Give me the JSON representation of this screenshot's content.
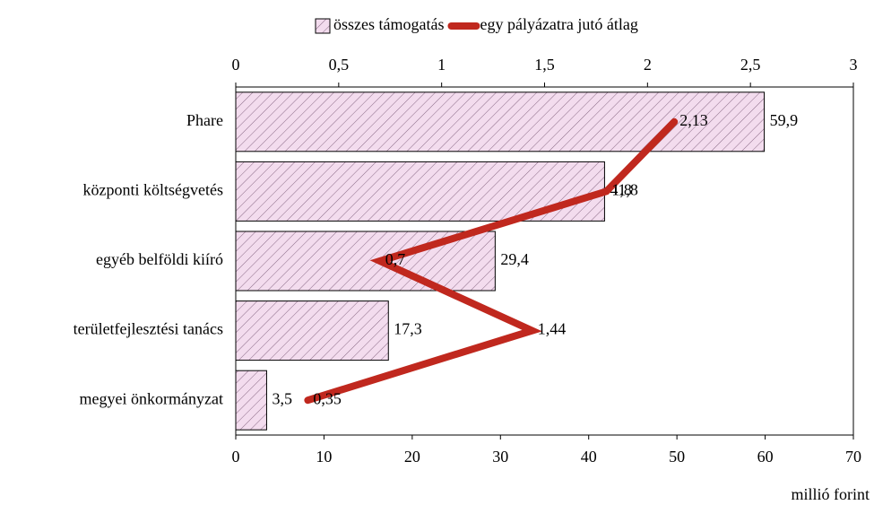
{
  "chart_data": {
    "type": "bar",
    "orientation": "horizontal",
    "categories": [
      "Phare",
      "központi költségvetés",
      "egyéb belföldi kiíró",
      "területfejlesztési tanács",
      "megyei önkormányzat"
    ],
    "series": [
      {
        "name": "összes támogatás",
        "type": "bar",
        "color": "#e9c0e0",
        "values": [
          59.9,
          41.8,
          29.4,
          17.3,
          3.5
        ],
        "value_labels": [
          "59,9",
          "41,8",
          "29,4",
          "17,3",
          "3,5"
        ]
      },
      {
        "name": "egy pályázatra jutó átlag",
        "type": "line",
        "axis": "y2",
        "color": "#c0281e",
        "values": [
          2.13,
          1.8,
          0.7,
          1.44,
          0.35
        ],
        "value_labels": [
          "2,13",
          "1,8",
          "0,7",
          "1,44",
          "0,35"
        ]
      }
    ],
    "xlim": [
      0,
      70
    ],
    "xticks": [
      0,
      10,
      20,
      30,
      40,
      50,
      60,
      70
    ],
    "x2lim": [
      0,
      3
    ],
    "x2ticks": [
      0,
      {
        "value": 0.5,
        "label": "0,5"
      },
      1,
      {
        "value": 1.5,
        "label": "1,5"
      },
      2,
      {
        "value": 2.5,
        "label": "2,5"
      },
      3
    ],
    "xlabel": "millió forint",
    "legend": "top"
  }
}
